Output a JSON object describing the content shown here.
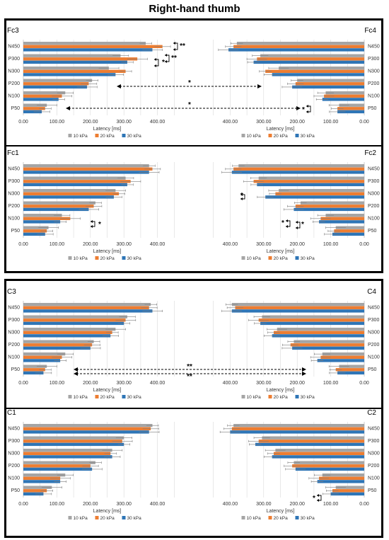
{
  "title": "Right-hand thumb",
  "legend": {
    "items": [
      {
        "label": "10 kPa",
        "color": "#A5A5A5"
      },
      {
        "label": "20 kPa",
        "color": "#ED7D31"
      },
      {
        "label": "30 kPa",
        "color": "#2E75B6"
      }
    ]
  },
  "axis_label": "Latency [ms]",
  "left_ticks": [
    "0.00",
    "100.00",
    "200.00",
    "300.00",
    "400.00"
  ],
  "right_ticks": [
    "400.00",
    "300.00",
    "200.00",
    "100.00",
    "0.00"
  ],
  "significance": {
    "single": "*",
    "double": "**"
  },
  "chart_data": [
    {
      "type": "bar",
      "orientation": "horizontal",
      "panel": "Fc3",
      "xlabel": "Latency [ms]",
      "xlim": [
        0,
        500
      ],
      "categories": [
        "N450",
        "P300",
        "N300",
        "P200",
        "N100",
        "P50"
      ],
      "series": [
        {
          "name": "10 kPa",
          "values": [
            365,
            290,
            255,
            205,
            125,
            70
          ]
        },
        {
          "name": "20 kPa",
          "values": [
            415,
            340,
            305,
            195,
            115,
            65
          ]
        },
        {
          "name": "30 kPa",
          "values": [
            385,
            310,
            275,
            190,
            105,
            55
          ]
        }
      ]
    },
    {
      "type": "bar",
      "orientation": "horizontal",
      "panel": "Fc4",
      "xlabel": "Latency [ms]",
      "xlim": [
        0,
        500
      ],
      "x_reversed": true,
      "categories": [
        "N450",
        "P300",
        "N300",
        "P200",
        "N100",
        "P50"
      ],
      "series": [
        {
          "name": "10 kPa",
          "values": [
            380,
            310,
            255,
            200,
            115,
            75
          ]
        },
        {
          "name": "20 kPa",
          "values": [
            390,
            320,
            295,
            205,
            120,
            80
          ]
        },
        {
          "name": "30 kPa",
          "values": [
            405,
            330,
            275,
            215,
            125,
            80
          ]
        }
      ]
    },
    {
      "type": "bar",
      "orientation": "horizontal",
      "panel": "Fc1",
      "xlabel": "Latency [ms]",
      "xlim": [
        0,
        500
      ],
      "categories": [
        "N450",
        "P300",
        "N300",
        "P200",
        "N100",
        "P50"
      ],
      "series": [
        {
          "name": "10 kPa",
          "values": [
            375,
            305,
            275,
            215,
            115,
            75
          ]
        },
        {
          "name": "20 kPa",
          "values": [
            385,
            320,
            285,
            210,
            140,
            70
          ]
        },
        {
          "name": "30 kPa",
          "values": [
            375,
            310,
            270,
            195,
            110,
            65
          ]
        }
      ]
    },
    {
      "type": "bar",
      "orientation": "horizontal",
      "panel": "Fc2",
      "xlabel": "Latency [ms]",
      "xlim": [
        0,
        500
      ],
      "x_reversed": true,
      "categories": [
        "N450",
        "P300",
        "N300",
        "P200",
        "N100",
        "P50"
      ],
      "series": [
        {
          "name": "10 kPa",
          "values": [
            375,
            315,
            255,
            190,
            115,
            85
          ]
        },
        {
          "name": "20 kPa",
          "values": [
            390,
            330,
            265,
            205,
            130,
            90
          ]
        },
        {
          "name": "30 kPa",
          "values": [
            395,
            320,
            295,
            210,
            135,
            95
          ]
        }
      ]
    },
    {
      "type": "bar",
      "orientation": "horizontal",
      "panel": "C3",
      "xlabel": "Latency [ms]",
      "xlim": [
        0,
        500
      ],
      "categories": [
        "N450",
        "P300",
        "N300",
        "P200",
        "N100",
        "P50"
      ],
      "series": [
        {
          "name": "10 kPa",
          "values": [
            380,
            310,
            275,
            210,
            125,
            70
          ]
        },
        {
          "name": "20 kPa",
          "values": [
            375,
            305,
            265,
            205,
            115,
            65
          ]
        },
        {
          "name": "30 kPa",
          "values": [
            385,
            300,
            260,
            200,
            110,
            60
          ]
        }
      ]
    },
    {
      "type": "bar",
      "orientation": "horizontal",
      "panel": "C4",
      "xlabel": "Latency [ms]",
      "xlim": [
        0,
        500
      ],
      "x_reversed": true,
      "categories": [
        "N450",
        "P300",
        "N300",
        "P200",
        "N100",
        "P50"
      ],
      "series": [
        {
          "name": "10 kPa",
          "values": [
            395,
            305,
            260,
            210,
            125,
            75
          ]
        },
        {
          "name": "20 kPa",
          "values": [
            385,
            315,
            270,
            220,
            130,
            85
          ]
        },
        {
          "name": "30 kPa",
          "values": [
            395,
            310,
            275,
            215,
            140,
            80
          ]
        }
      ]
    },
    {
      "type": "bar",
      "orientation": "horizontal",
      "panel": "C1",
      "xlabel": "Latency [ms]",
      "xlim": [
        0,
        500
      ],
      "categories": [
        "N450",
        "P300",
        "N300",
        "P200",
        "N100",
        "P50"
      ],
      "series": [
        {
          "name": "10 kPa",
          "values": [
            385,
            300,
            265,
            215,
            125,
            85
          ]
        },
        {
          "name": "20 kPa",
          "values": [
            380,
            295,
            260,
            200,
            110,
            70
          ]
        },
        {
          "name": "30 kPa",
          "values": [
            375,
            300,
            265,
            205,
            110,
            60
          ]
        }
      ]
    },
    {
      "type": "bar",
      "orientation": "horizontal",
      "panel": "C2",
      "xlabel": "Latency [ms]",
      "xlim": [
        0,
        500
      ],
      "x_reversed": true,
      "categories": [
        "N450",
        "P300",
        "N300",
        "P200",
        "N100",
        "P50"
      ],
      "series": [
        {
          "name": "10 kPa",
          "values": [
            390,
            305,
            265,
            210,
            125,
            85
          ]
        },
        {
          "name": "20 kPa",
          "values": [
            395,
            315,
            270,
            215,
            135,
            95
          ]
        },
        {
          "name": "30 kPa",
          "values": [
            400,
            325,
            275,
            205,
            140,
            100
          ]
        }
      ]
    }
  ]
}
